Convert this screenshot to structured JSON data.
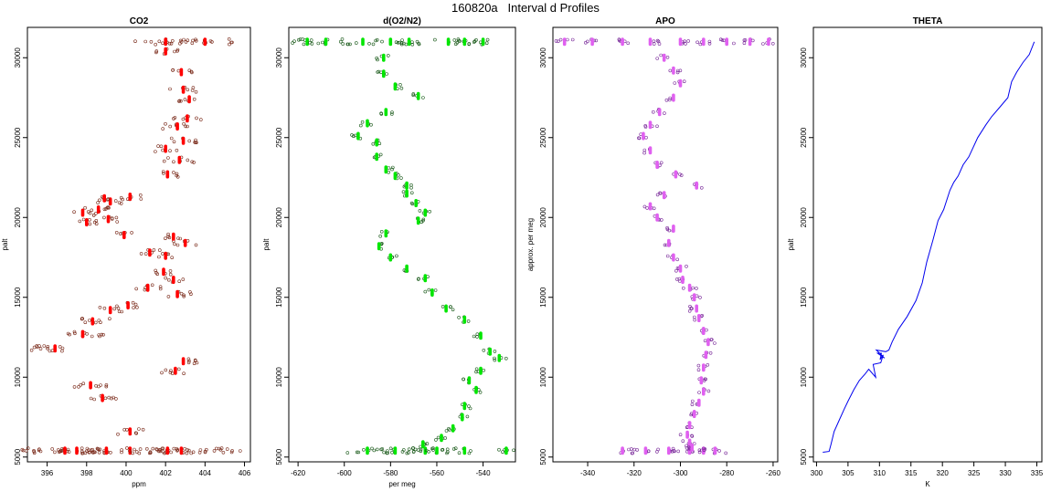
{
  "figure": {
    "title": "160820a   Interval d Profiles"
  },
  "chart_data": [
    {
      "type": "scatter",
      "title": "CO2",
      "xlabel": "ppm",
      "ylabel": "palt",
      "xlim": [
        395,
        406.3
      ],
      "ylim": [
        4700,
        31900
      ],
      "xticks": [
        396,
        398,
        400,
        402,
        404,
        406
      ],
      "yticks": [
        5000,
        10000,
        15000,
        20000,
        25000,
        30000
      ],
      "color": "#ff0000",
      "outline": "#7a2a1a",
      "series": [
        {
          "x": [
            402,
            404,
            400.2,
            399,
            397.5,
            396.9,
            402.8,
            402.1,
            400.2,
            396.4,
            397.8,
            398.3,
            399.2,
            400.1,
            401.1,
            402.6,
            403.0,
            402.4,
            402.0,
            401.9,
            402.4,
            400.2,
            399.2,
            397.8,
            398.0,
            398.6,
            399.1,
            398.9,
            399.9,
            401.2,
            402.1,
            402.0,
            402.9,
            402.6,
            403.1,
            403.2,
            402.9,
            402.8,
            402.0,
            402.7,
            398.2,
            398.8,
            402.5,
            402.9
          ],
          "y": [
            31000,
            31000,
            5400,
            5400,
            5400,
            5400,
            5400,
            5400,
            6600,
            11800,
            12700,
            13500,
            14200,
            14500,
            15600,
            15200,
            18400,
            18800,
            17600,
            16600,
            16100,
            21300,
            21000,
            20300,
            19700,
            20500,
            19900,
            21200,
            18900,
            17800,
            22700,
            24300,
            24800,
            25700,
            26200,
            27400,
            28000,
            29100,
            30400,
            23600,
            9500,
            8700,
            10400,
            11000
          ],
          "xerr": [
            1.6,
            1.5,
            5.6,
            1.4,
            1.0,
            0.6,
            1.4,
            0.9,
            0.7,
            1.4,
            1.2,
            0.9,
            0.6,
            0.6,
            0.7,
            0.7,
            0.6,
            0.6,
            0.5,
            0.6,
            0.5,
            0.6,
            0.7,
            0.7,
            0.7,
            0.7,
            0.6,
            0.5,
            0.6,
            0.6,
            0.6,
            0.6,
            0.8,
            0.8,
            0.7,
            0.6,
            0.7,
            0.6,
            0.7,
            0.8,
            0.9,
            0.8,
            0.7,
            0.7
          ]
        }
      ]
    },
    {
      "type": "scatter",
      "title": "d(O2/N2)",
      "xlabel": "per meg",
      "ylabel": "palt",
      "xlim": [
        -624,
        -526
      ],
      "ylim": [
        4700,
        31900
      ],
      "xticks": [
        -620,
        -600,
        -580,
        -560,
        -540
      ],
      "yticks": [
        5000,
        10000,
        15000,
        20000,
        25000,
        30000
      ],
      "color": "#00e600",
      "outline": "#1a5a1a",
      "series": [
        {
          "x": [
            -616,
            -608,
            -592,
            -580,
            -572,
            -555,
            -548,
            -540,
            -530,
            -590,
            -578,
            -565,
            -560,
            -548,
            -583,
            -583,
            -578,
            -568,
            -582,
            -590,
            -594,
            -586,
            -586,
            -582,
            -578,
            -573,
            -573,
            -569,
            -565,
            -568,
            -582,
            -585,
            -580,
            -573,
            -565,
            -562,
            -556,
            -548,
            -541,
            -537,
            -533,
            -541,
            -546,
            -543,
            -548,
            -549,
            -553,
            -558,
            -566
          ],
          "y": [
            31000,
            31000,
            31000,
            31000,
            31000,
            31000,
            31000,
            31000,
            5400,
            5400,
            5400,
            5400,
            5400,
            5400,
            30000,
            29000,
            28200,
            27600,
            26600,
            25900,
            25100,
            24700,
            23800,
            23000,
            22600,
            22000,
            21500,
            20900,
            20300,
            19800,
            19000,
            18200,
            17500,
            16800,
            16200,
            15300,
            14300,
            13600,
            12600,
            11600,
            11200,
            10400,
            9800,
            9200,
            8200,
            7500,
            6800,
            6200,
            5800
          ],
          "xerr": [
            8,
            8,
            7,
            6,
            6,
            6,
            6,
            5,
            5,
            12,
            10,
            8,
            6,
            5,
            3,
            3,
            3,
            3,
            3,
            3,
            3,
            3,
            3,
            3,
            3,
            3,
            3,
            3,
            3,
            3,
            3,
            3,
            3,
            3,
            3,
            3,
            3,
            3,
            3,
            3,
            3,
            3,
            3,
            3,
            3,
            3,
            3,
            3,
            3
          ]
        }
      ]
    },
    {
      "type": "scatter",
      "title": "APO",
      "xlabel": "",
      "ylabel": "approx. per meg",
      "xlim": [
        -355,
        -258
      ],
      "ylim": [
        4700,
        31900
      ],
      "xticks": [
        -340,
        -320,
        -300,
        -280,
        -260
      ],
      "yticks": [
        5000,
        10000,
        15000,
        20000,
        25000,
        30000
      ],
      "color": "#e060f0",
      "outline": "#7a2a9a",
      "series": [
        {
          "x": [
            -350,
            -338,
            -325,
            -313,
            -300,
            -290,
            -280,
            -270,
            -262,
            -325,
            -315,
            -305,
            -296,
            -290,
            -285,
            -307,
            -303,
            -300,
            -303,
            -309,
            -313,
            -316,
            -313,
            -310,
            -302,
            -293,
            -307,
            -313,
            -310,
            -303,
            -305,
            -303,
            -300,
            -299,
            -296,
            -294,
            -293,
            -292,
            -290,
            -288,
            -289,
            -290,
            -291,
            -290,
            -292,
            -294,
            -296,
            -297,
            -296,
            -295
          ],
          "y": [
            31000,
            31000,
            31000,
            31000,
            31000,
            31000,
            31000,
            31000,
            31000,
            5400,
            5400,
            5400,
            5400,
            5400,
            5400,
            30000,
            29200,
            28400,
            27500,
            26600,
            25800,
            25100,
            24200,
            23300,
            22700,
            22000,
            21400,
            20700,
            20000,
            19300,
            18400,
            17500,
            16800,
            16100,
            15600,
            15000,
            14300,
            13700,
            12900,
            12200,
            11400,
            10600,
            9800,
            9100,
            8400,
            7700,
            7000,
            6400,
            5900,
            5600
          ],
          "xerr": [
            4,
            4,
            4,
            4,
            4,
            4,
            4,
            4,
            3,
            6,
            6,
            6,
            5,
            5,
            5,
            3,
            3,
            3,
            3,
            3,
            3,
            3,
            3,
            3,
            3,
            3,
            3,
            3,
            3,
            3,
            3,
            3,
            3,
            3,
            3,
            3,
            3,
            3,
            3,
            3,
            3,
            3,
            3,
            3,
            3,
            3,
            3,
            3,
            3,
            3
          ]
        }
      ]
    },
    {
      "type": "line",
      "title": "THETA",
      "xlabel": "K",
      "ylabel": "palt",
      "xlim": [
        299.5,
        335.8
      ],
      "ylim": [
        4700,
        31900
      ],
      "xticks": [
        300,
        305,
        310,
        315,
        320,
        325,
        330,
        335
      ],
      "yticks": [
        5000,
        10000,
        15000,
        20000,
        25000,
        30000
      ],
      "color": "#0000ee",
      "series": [
        {
          "x": [
            301.0,
            302.0,
            302.3,
            302.8,
            303.6,
            304.4,
            305.0,
            305.9,
            306.8,
            307.7,
            308.3,
            309.4,
            309.0,
            310.2,
            310.6,
            310.1,
            310.3,
            309.7,
            310.8,
            309.5,
            311.0,
            311.5,
            312.0,
            313.0,
            314.4,
            315.8,
            316.8,
            317.5,
            318.5,
            319.3,
            320.2,
            321.2,
            321.8,
            322.5,
            323.3,
            324.2,
            325.6,
            326.9,
            327.8,
            329.1,
            330.4,
            331.0,
            331.8,
            332.8,
            333.8,
            334.6
          ],
          "y": [
            5300,
            5350,
            5800,
            6600,
            7300,
            8000,
            8500,
            9200,
            9800,
            10200,
            10500,
            10000,
            10800,
            10900,
            11400,
            11100,
            11500,
            11500,
            11200,
            11700,
            11600,
            11700,
            12200,
            13000,
            13800,
            14800,
            15900,
            17200,
            18600,
            19800,
            20500,
            21700,
            22200,
            22600,
            23300,
            23800,
            25000,
            25800,
            26300,
            26900,
            27500,
            28500,
            29100,
            29700,
            30200,
            31000
          ]
        }
      ]
    }
  ]
}
